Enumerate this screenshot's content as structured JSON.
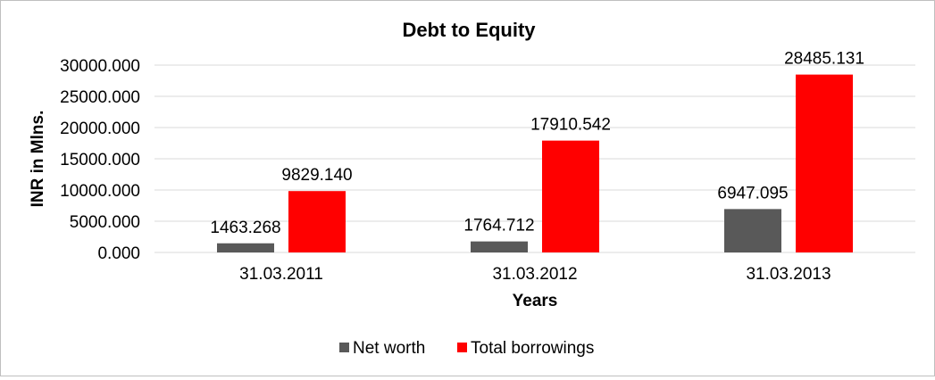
{
  "chart_data": {
    "type": "bar",
    "title": "Debt to Equity",
    "xlabel": "Years",
    "ylabel": "INR in Mlns.",
    "categories": [
      "31.03.2011",
      "31.03.2012",
      "31.03.2013"
    ],
    "series": [
      {
        "name": "Net worth",
        "color": "#595959",
        "values": [
          1463.268,
          1764.712,
          6947.095
        ],
        "labels": [
          "1463.268",
          "1764.712",
          "6947.095"
        ]
      },
      {
        "name": "Total borrowings",
        "color": "#ff0000",
        "values": [
          9829.14,
          17910.542,
          28485.131
        ],
        "labels": [
          "9829.140",
          "17910.542",
          "28485.131"
        ]
      }
    ],
    "ylim": [
      0,
      30000
    ],
    "yticks": [
      0,
      5000,
      10000,
      15000,
      20000,
      25000,
      30000
    ],
    "ytick_labels": [
      "0.000",
      "5000.000",
      "10000.000",
      "15000.000",
      "20000.000",
      "25000.000",
      "30000.000"
    ],
    "grid": true,
    "legend_position": "bottom"
  }
}
